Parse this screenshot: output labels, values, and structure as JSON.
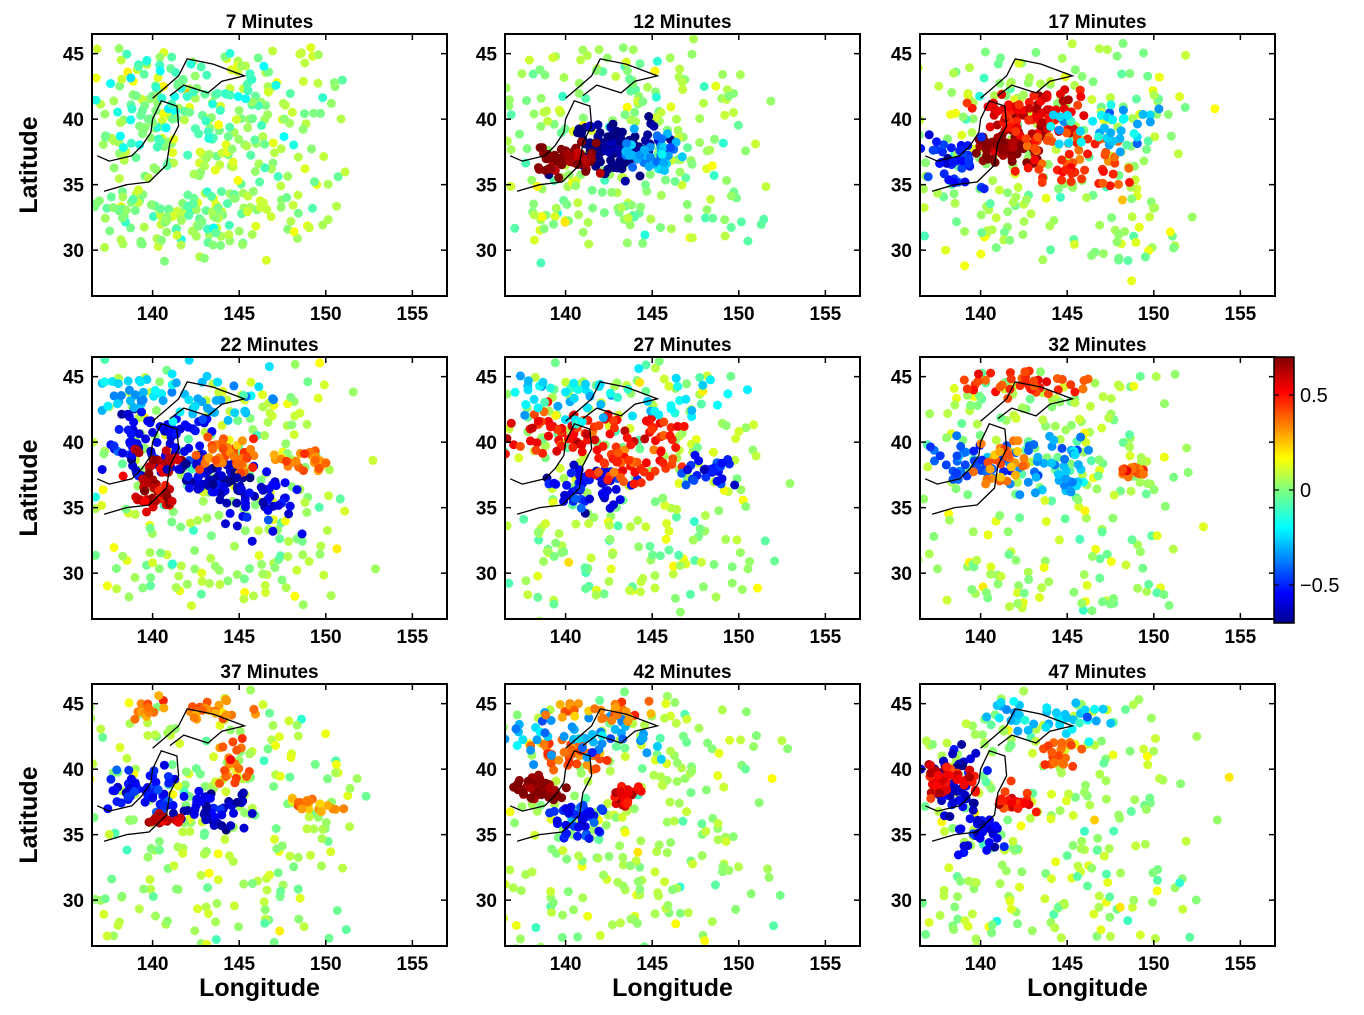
{
  "chart_data": {
    "type": "scatter",
    "panels": [
      {
        "title": "7 Minutes",
        "blobs": [
          {
            "x": [
              137,
              150
            ],
            "y": [
              32,
              45
            ],
            "v": 0.05,
            "n": 260,
            "s": 1.2
          },
          {
            "x": [
              137,
              145
            ],
            "y": [
              30,
              34
            ],
            "v": 0.0,
            "n": 90,
            "s": 0.8
          },
          {
            "x": [
              138,
              147
            ],
            "y": [
              38,
              44
            ],
            "v": -0.08,
            "n": 90,
            "s": 1.2
          }
        ]
      },
      {
        "title": "12 Minutes",
        "blobs": [
          {
            "x": [
              137,
              150
            ],
            "y": [
              31,
              45
            ],
            "v": 0.03,
            "n": 240,
            "s": 1.3
          },
          {
            "x": [
              142.8,
              142.8
            ],
            "y": [
              37.8,
              37.8
            ],
            "v": -0.72,
            "n": 110,
            "s": 1.2
          },
          {
            "x": [
              140,
              140
            ],
            "y": [
              37,
              37
            ],
            "v": 0.7,
            "n": 55,
            "s": 0.8
          },
          {
            "x": [
              144,
              146
            ],
            "y": [
              36,
              39
            ],
            "v": -0.3,
            "n": 40,
            "s": 0.6
          }
        ]
      },
      {
        "title": "17 Minutes",
        "blobs": [
          {
            "x": [
              137,
              151
            ],
            "y": [
              29,
              45
            ],
            "v": 0.05,
            "n": 240,
            "s": 1.3
          },
          {
            "x": [
              141.5,
              141.5
            ],
            "y": [
              37.8,
              37.8
            ],
            "v": 0.7,
            "n": 70,
            "s": 0.8
          },
          {
            "x": [
              140,
              146
            ],
            "y": [
              39,
              42
            ],
            "v": 0.55,
            "n": 80,
            "s": 0.6
          },
          {
            "x": [
              143,
              148
            ],
            "y": [
              35,
              39
            ],
            "v": 0.45,
            "n": 60,
            "s": 0.5
          },
          {
            "x": [
              137,
              140
            ],
            "y": [
              35,
              38
            ],
            "v": -0.5,
            "n": 40,
            "s": 0.6
          },
          {
            "x": [
              144,
              150
            ],
            "y": [
              38,
              41
            ],
            "v": -0.25,
            "n": 40,
            "s": 0.6
          }
        ]
      },
      {
        "title": "22 Minutes",
        "blobs": [
          {
            "x": [
              137,
              150
            ],
            "y": [
              28,
              45
            ],
            "v": 0.05,
            "n": 240,
            "s": 1.3
          },
          {
            "x": [
              138,
              143
            ],
            "y": [
              38,
              42
            ],
            "v": -0.55,
            "n": 80,
            "s": 0.7
          },
          {
            "x": [
              139.5,
              141
            ],
            "y": [
              35,
              39
            ],
            "v": 0.6,
            "n": 60,
            "s": 0.5
          },
          {
            "x": [
              142,
              145
            ],
            "y": [
              36,
              38
            ],
            "v": -0.6,
            "n": 60,
            "s": 0.6
          },
          {
            "x": [
              143,
              146
            ],
            "y": [
              38,
              40
            ],
            "v": 0.4,
            "n": 40,
            "s": 0.5
          },
          {
            "x": [
              145,
              148
            ],
            "y": [
              33,
              37
            ],
            "v": -0.55,
            "n": 40,
            "s": 0.6
          },
          {
            "x": [
              147,
              150
            ],
            "y": [
              38,
              39
            ],
            "v": 0.35,
            "n": 25,
            "s": 0.4
          },
          {
            "x": [
              137,
              147
            ],
            "y": [
              42,
              45
            ],
            "v": -0.25,
            "n": 60,
            "s": 0.9
          }
        ]
      },
      {
        "title": "27 Minutes",
        "blobs": [
          {
            "x": [
              137,
              150
            ],
            "y": [
              28,
              45
            ],
            "v": 0.05,
            "n": 240,
            "s": 1.3
          },
          {
            "x": [
              137,
              146
            ],
            "y": [
              39,
              42
            ],
            "v": 0.5,
            "n": 90,
            "s": 0.6
          },
          {
            "x": [
              140,
              143
            ],
            "y": [
              35,
              38
            ],
            "v": -0.55,
            "n": 60,
            "s": 0.6
          },
          {
            "x": [
              142,
              146
            ],
            "y": [
              37,
              39
            ],
            "v": 0.45,
            "n": 40,
            "s": 0.5
          },
          {
            "x": [
              147,
              150
            ],
            "y": [
              37,
              38.5
            ],
            "v": -0.5,
            "n": 30,
            "s": 0.4
          },
          {
            "x": [
              137,
              148
            ],
            "y": [
              42,
              45
            ],
            "v": -0.2,
            "n": 60,
            "s": 0.9
          }
        ]
      },
      {
        "title": "32 Minutes",
        "blobs": [
          {
            "x": [
              137,
              151
            ],
            "y": [
              27,
              45
            ],
            "v": 0.05,
            "n": 240,
            "s": 1.3
          },
          {
            "x": [
              139,
              146
            ],
            "y": [
              44,
              45
            ],
            "v": 0.45,
            "n": 40,
            "s": 0.5
          },
          {
            "x": [
              138,
              143
            ],
            "y": [
              37,
              40
            ],
            "v": -0.4,
            "n": 50,
            "s": 0.6
          },
          {
            "x": [
              143,
              146
            ],
            "y": [
              36,
              40
            ],
            "v": -0.3,
            "n": 40,
            "s": 0.5
          },
          {
            "x": [
              148,
              149
            ],
            "y": [
              37.5,
              38
            ],
            "v": 0.4,
            "n": 20,
            "s": 0.3
          },
          {
            "x": [
              140,
              142
            ],
            "y": [
              37,
              40
            ],
            "v": 0.35,
            "n": 30,
            "s": 0.4
          }
        ]
      },
      {
        "title": "37 Minutes",
        "blobs": [
          {
            "x": [
              137,
              151
            ],
            "y": [
              27,
              45
            ],
            "v": 0.05,
            "n": 240,
            "s": 1.3
          },
          {
            "x": [
              138,
              141
            ],
            "y": [
              37,
              40
            ],
            "v": -0.5,
            "n": 50,
            "s": 0.6
          },
          {
            "x": [
              142,
              145
            ],
            "y": [
              36,
              38
            ],
            "v": -0.6,
            "n": 50,
            "s": 0.6
          },
          {
            "x": [
              140,
              141
            ],
            "y": [
              36,
              36.5
            ],
            "v": 0.6,
            "n": 20,
            "s": 0.3
          },
          {
            "x": [
              139,
              146
            ],
            "y": [
              44,
              45
            ],
            "v": 0.35,
            "n": 40,
            "s": 0.5
          },
          {
            "x": [
              144,
              145
            ],
            "y": [
              39,
              42
            ],
            "v": 0.4,
            "n": 20,
            "s": 0.4
          },
          {
            "x": [
              148,
              151
            ],
            "y": [
              37,
              37.5
            ],
            "v": 0.3,
            "n": 20,
            "s": 0.3
          }
        ]
      },
      {
        "title": "42 Minutes",
        "blobs": [
          {
            "x": [
              137,
              151
            ],
            "y": [
              27,
              45
            ],
            "v": 0.05,
            "n": 240,
            "s": 1.3
          },
          {
            "x": [
              138.3,
              138.3
            ],
            "y": [
              38.5,
              38.5
            ],
            "v": 0.7,
            "n": 60,
            "s": 0.6
          },
          {
            "x": [
              139,
              142
            ],
            "y": [
              40,
              42
            ],
            "v": 0.4,
            "n": 40,
            "s": 0.5
          },
          {
            "x": [
              140,
              142
            ],
            "y": [
              35,
              37
            ],
            "v": -0.5,
            "n": 40,
            "s": 0.5
          },
          {
            "x": [
              143,
              144
            ],
            "y": [
              37.5,
              38.5
            ],
            "v": 0.55,
            "n": 25,
            "s": 0.4
          },
          {
            "x": [
              137,
              145
            ],
            "y": [
              41,
              44
            ],
            "v": -0.3,
            "n": 50,
            "s": 0.8
          },
          {
            "x": [
              139,
              146
            ],
            "y": [
              44,
              45
            ],
            "v": 0.35,
            "n": 30,
            "s": 0.5
          }
        ]
      },
      {
        "title": "47 Minutes",
        "blobs": [
          {
            "x": [
              137,
              152
            ],
            "y": [
              27,
              45
            ],
            "v": 0.05,
            "n": 240,
            "s": 1.3
          },
          {
            "x": [
              138,
              139
            ],
            "y": [
              37,
              41
            ],
            "v": -0.6,
            "n": 50,
            "s": 0.6
          },
          {
            "x": [
              137,
              139
            ],
            "y": [
              38,
              40
            ],
            "v": 0.55,
            "n": 40,
            "s": 0.5
          },
          {
            "x": [
              139,
              141
            ],
            "y": [
              34,
              36
            ],
            "v": -0.55,
            "n": 30,
            "s": 0.4
          },
          {
            "x": [
              141,
              143
            ],
            "y": [
              37,
              38
            ],
            "v": 0.5,
            "n": 25,
            "s": 0.4
          },
          {
            "x": [
              141,
              147
            ],
            "y": [
              43,
              45
            ],
            "v": -0.25,
            "n": 40,
            "s": 0.6
          },
          {
            "x": [
              144,
              145
            ],
            "y": [
              40,
              42
            ],
            "v": 0.4,
            "n": 20,
            "s": 0.4
          }
        ]
      }
    ],
    "xlim": [
      136.5,
      157
    ],
    "ylim": [
      26.5,
      46.5
    ],
    "xticks": [
      140,
      145,
      150,
      155
    ],
    "yticks": [
      30,
      35,
      40,
      45
    ],
    "xlabel": "Longitude",
    "ylabel": "Latitude",
    "colorbar": {
      "range": [
        -0.7,
        0.7
      ],
      "ticks": [
        {
          "value": 0.5,
          "label": "0.5"
        },
        {
          "value": 0,
          "label": "0"
        },
        {
          "value": -0.5,
          "label": "−0.5"
        }
      ]
    },
    "colormap": [
      "#00008f",
      "#0000ff",
      "#00ffff",
      "#ffff00",
      "#ff0000",
      "#800000"
    ]
  }
}
